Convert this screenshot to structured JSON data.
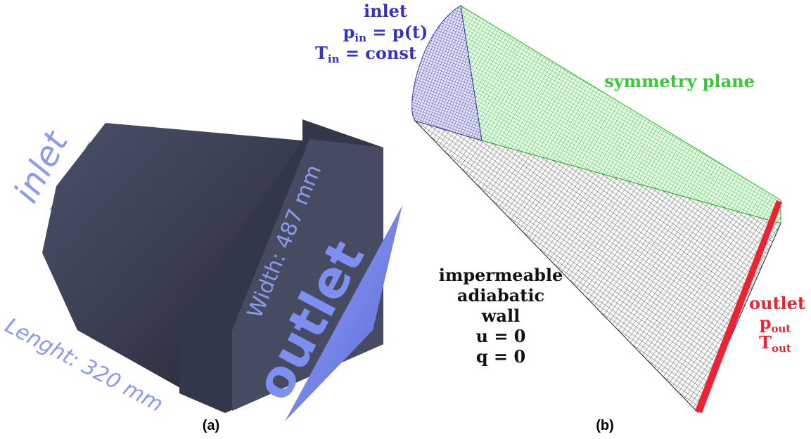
{
  "panel_a": {
    "inlet_label": "inlet",
    "outlet_label": "outlet",
    "width_label": "Width: 487 mm",
    "length_label": "Lenght: 320 mm",
    "caption": "(a)"
  },
  "panel_b": {
    "inlet": {
      "title": "inlet",
      "pressure": {
        "symbol": "p",
        "sub": "in",
        "rest": " = p(t)"
      },
      "temperature": {
        "symbol": "T",
        "sub": "in",
        "rest": " = const"
      }
    },
    "symmetry_label": "symmetry plane",
    "wall": {
      "lines": [
        "impermeable",
        "adiabatic",
        "wall",
        "u = 0",
        "q = 0"
      ]
    },
    "outlet": {
      "title": "outlet",
      "pressure": {
        "symbol": "p",
        "sub": "out"
      },
      "temperature": {
        "symbol": "T",
        "sub": "out"
      }
    },
    "caption": "(b)"
  }
}
